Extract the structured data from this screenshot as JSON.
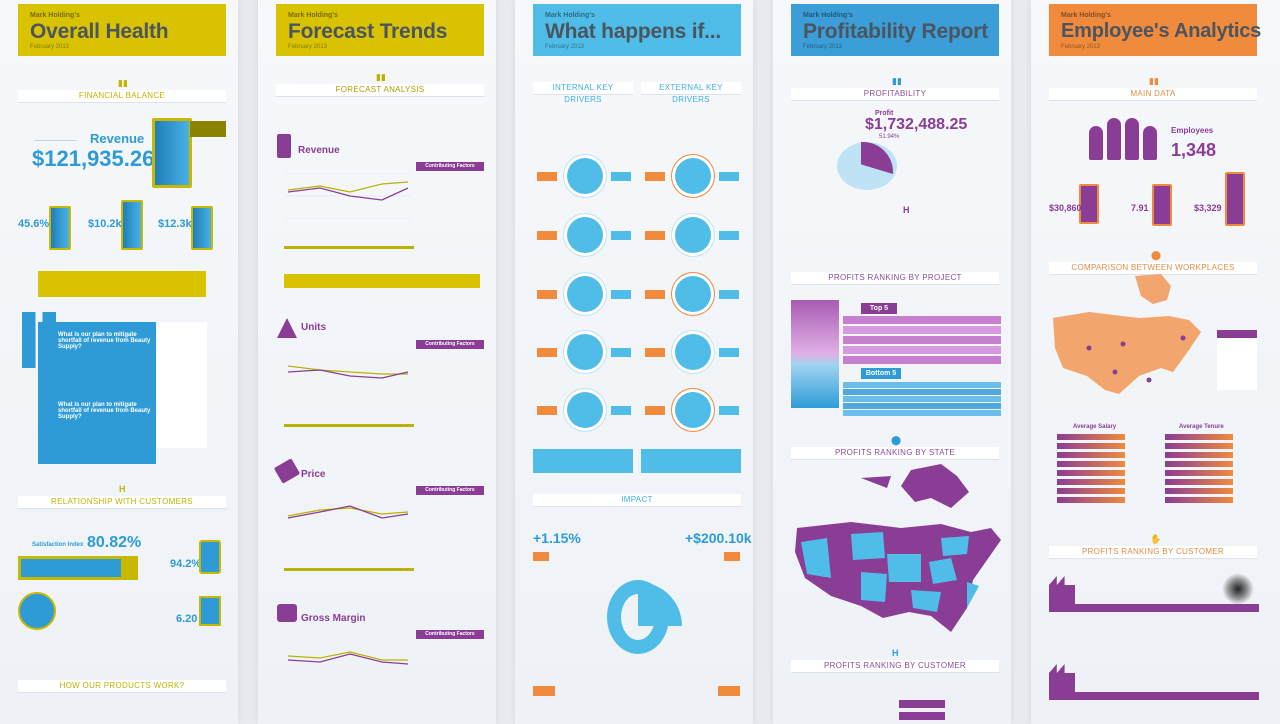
{
  "colors": {
    "yellow": "#d9c300",
    "cyan": "#4fbde8",
    "blue": "#2f9bd6",
    "orange": "#f08a3c",
    "purple": "#8a3d95",
    "olive": "#b9b300"
  },
  "panels": [
    {
      "company": "Mark Holding's",
      "title": "Overall Health",
      "date": "February 2013"
    },
    {
      "company": "Mark Holding's",
      "title": "Forecast Trends",
      "date": "February 2013"
    },
    {
      "company": "Mark Holding's",
      "title": "What happens if...",
      "date": "February 2013"
    },
    {
      "company": "Mark Holding's",
      "title": "Profitability Report",
      "date": "February 2013"
    },
    {
      "company": "Mark Holding's",
      "title": "Employee's Analytics",
      "date": "February 2013"
    }
  ],
  "overall": {
    "financial_balance": "FINANCIAL BALANCE",
    "revenue_label": "Revenue",
    "revenue_value": "$121,935.26",
    "m1": "45.6%",
    "m2": "$10.2k",
    "m3": "$12.3k",
    "q1": "What is our plan to mitigate shortfall of revenue from Beauty Supply?",
    "q2": "What is our plan to mitigate shortfall of revenue from Beauty Supply?",
    "relationship": "RELATIONSHIP WITH CUSTOMERS",
    "satisfaction_label": "Satisfaction Index",
    "satisfaction": "80.82%",
    "pct2": "94.2%",
    "score": "6.20",
    "how_products": "HOW OUR PRODUCTS WORK?"
  },
  "forecast": {
    "forecast_analysis": "FORECAST ANALYSIS",
    "revenue": "Revenue",
    "units": "Units",
    "price": "Price",
    "gross_margin": "Gross Margin",
    "contributing": "Contributing Factors"
  },
  "whatif": {
    "internal": "INTERNAL KEY DRIVERS",
    "external": "EXTERNAL KEY DRIVERS",
    "impact": "IMPACT",
    "impact_pct": "+1.15%",
    "impact_val": "+$200.10k"
  },
  "profit": {
    "profitability": "PROFITABILITY",
    "profit_label": "Profit",
    "profit_value": "$1,732,488.25",
    "profit_pct": "51.94%",
    "by_project": "PROFITS RANKING BY PROJECT",
    "top5": "Top 5",
    "bottom5": "Bottom 5",
    "by_state": "PROFITS RANKING BY STATE",
    "by_customer": "PROFITS RANKING BY CUSTOMER"
  },
  "employee": {
    "main_data": "MAIN DATA",
    "employees_label": "Employees",
    "employees_value": "1,348",
    "v1": "$30,860",
    "v2": "7.91",
    "v3": "$3,329",
    "workplaces": "COMPARISON BETWEEN WORKPLACES",
    "avg_salary": "Average Salary",
    "avg_tenure": "Average Tenure",
    "by_customer": "PROFITS RANKING BY CUSTOMER"
  }
}
